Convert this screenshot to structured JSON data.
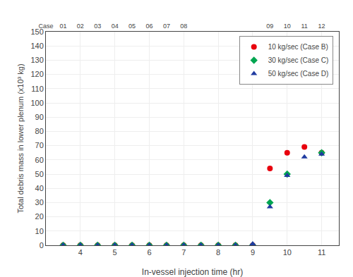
{
  "chart_data": {
    "type": "scatter",
    "xlabel": "In-vessel injection time (hr)",
    "ylabel": "Total debris mass in lower plenum (x10³ kg)",
    "xlim": [
      3.0,
      11.5
    ],
    "xticks": [
      4,
      5,
      6,
      7,
      8,
      9,
      10,
      11
    ],
    "ylim": [
      0,
      150
    ],
    "yticks": [
      0,
      10,
      20,
      30,
      40,
      50,
      60,
      70,
      80,
      90,
      100,
      110,
      120,
      130,
      140,
      150
    ],
    "x2lim": [
      3.0,
      11.5
    ],
    "x2ticks": [
      {
        "value": 3.0,
        "label": "Case"
      },
      {
        "value": 3.5,
        "label": "01"
      },
      {
        "value": 4.0,
        "label": "02"
      },
      {
        "value": 4.5,
        "label": "03"
      },
      {
        "value": 5.0,
        "label": "04"
      },
      {
        "value": 5.5,
        "label": "05"
      },
      {
        "value": 6.0,
        "label": "06"
      },
      {
        "value": 6.5,
        "label": "07"
      },
      {
        "value": 7.0,
        "label": "08"
      },
      {
        "value": 9.5,
        "label": "09"
      },
      {
        "value": 10.0,
        "label": "10"
      },
      {
        "value": 10.5,
        "label": "11"
      },
      {
        "value": 11.0,
        "label": "12"
      }
    ],
    "grid": true,
    "legend": "upper right",
    "series": [
      {
        "name": "10 kg/sec (Case B)",
        "color": "#e8000d",
        "marker": "circle",
        "x": [
          3.5,
          4.0,
          4.5,
          5.0,
          5.5,
          6.0,
          6.5,
          7.0,
          7.5,
          8.0,
          8.5,
          9.0,
          9.5,
          10.0,
          10.5,
          11.0
        ],
        "values": [
          0,
          0,
          0,
          0,
          0,
          0,
          0,
          0,
          0,
          0,
          0,
          0,
          54,
          65,
          69,
          65
        ]
      },
      {
        "name": "30 kg/sec (Case C)",
        "color": "#00a550",
        "marker": "diamond",
        "x": [
          3.5,
          4.0,
          4.5,
          5.0,
          5.5,
          6.0,
          6.5,
          7.0,
          7.5,
          8.0,
          8.5,
          9.0,
          9.5,
          10.0,
          11.0
        ],
        "values": [
          0,
          0,
          0,
          0,
          0,
          0,
          0,
          0,
          0,
          0,
          0,
          0,
          30,
          50,
          65
        ]
      },
      {
        "name": "50 kg/sec (Case D)",
        "color": "#1f3ba0",
        "marker": "triangle-up",
        "x": [
          3.5,
          4.0,
          4.5,
          5.0,
          5.5,
          6.0,
          6.5,
          7.0,
          7.5,
          8.0,
          8.5,
          9.0,
          9.5,
          10.0,
          10.5,
          11.0
        ],
        "values": [
          0,
          0,
          0,
          0,
          0,
          0,
          0,
          0,
          0,
          0,
          0,
          1,
          27,
          49,
          62,
          64
        ]
      }
    ]
  }
}
